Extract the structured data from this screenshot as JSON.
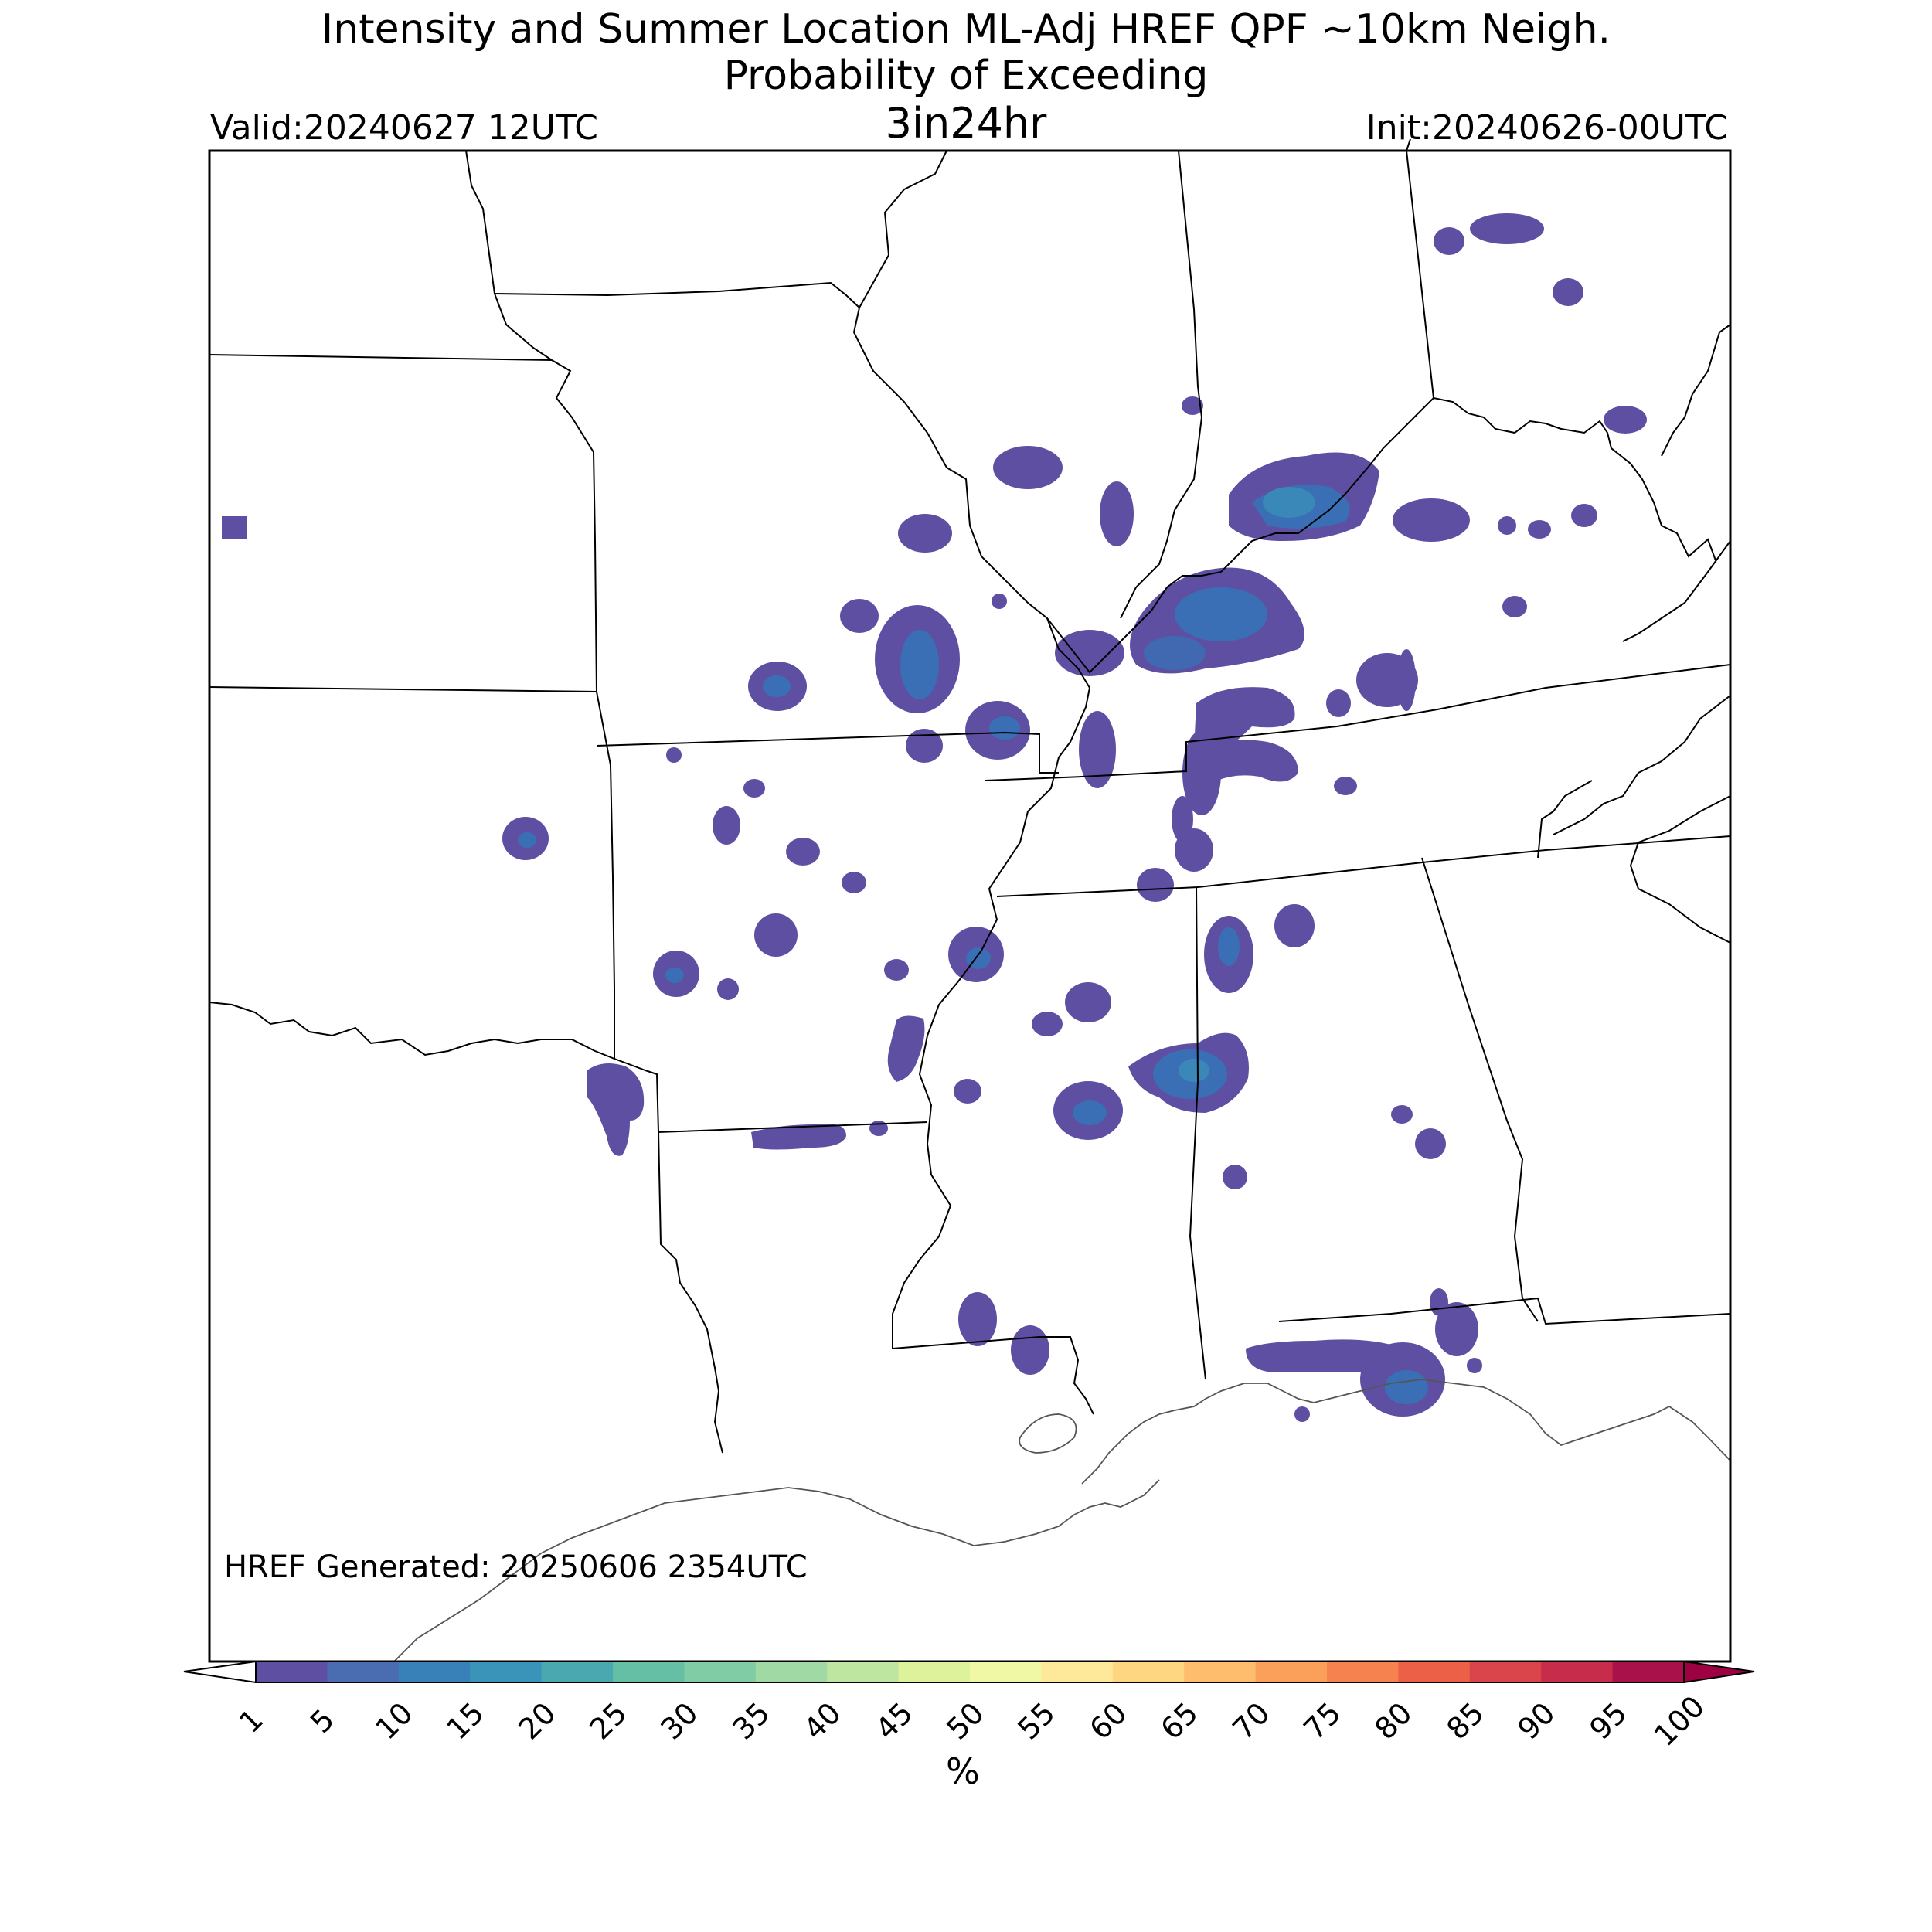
{
  "title": {
    "line1": "Intensity and Summer Location ML-Adj HREF QPF ~10km Neigh.",
    "line2": "Probability of Exceeding",
    "line3": "3in24hr"
  },
  "valid": "Valid:20240627 12UTC",
  "init": "Init:20240626-00UTC",
  "generated": "HREF Generated: 20250606 2354UTC",
  "colorbar": {
    "unit": "%",
    "ticks": [
      "1",
      "5",
      "10",
      "15",
      "20",
      "25",
      "30",
      "35",
      "40",
      "45",
      "50",
      "55",
      "60",
      "65",
      "70",
      "75",
      "80",
      "85",
      "90",
      "95",
      "100"
    ],
    "colors": [
      "#5e4fa2",
      "#4a6cb1",
      "#3780b8",
      "#3a93b8",
      "#4aa9b0",
      "#64bfa4",
      "#80cca4",
      "#a0d9a3",
      "#bfe6a0",
      "#ddf29a",
      "#f1f8a5",
      "#fee99a",
      "#fed581",
      "#fdbd6d",
      "#fba05b",
      "#f6824f",
      "#eb6046",
      "#d9454b",
      "#c72d4a",
      "#a9114a"
    ],
    "under_color": "#ffffff",
    "over_color": "#9e0142"
  },
  "colors": {
    "prob_low": "#5e4fa2",
    "prob_mid": "#3a6fb5",
    "prob_high": "#3a93b8",
    "state_border": "#000000",
    "coast": "#555555"
  }
}
